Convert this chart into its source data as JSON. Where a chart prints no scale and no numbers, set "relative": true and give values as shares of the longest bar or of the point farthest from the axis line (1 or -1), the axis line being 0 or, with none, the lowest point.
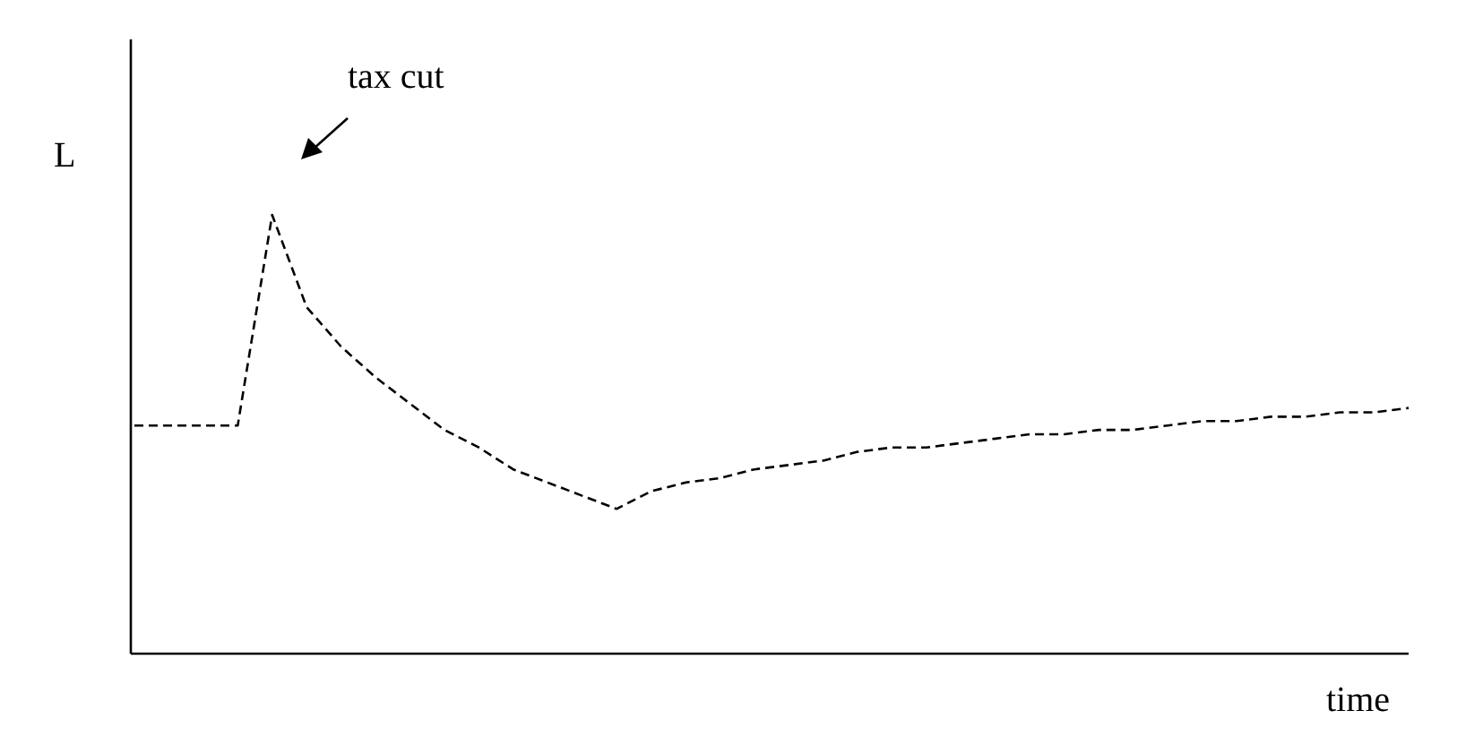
{
  "chart_data": {
    "type": "line",
    "relative": true,
    "xlabel": "time",
    "ylabel": "L",
    "annotations": [
      "tax cut"
    ],
    "marker": "none",
    "line_style": "dashed",
    "categories": [
      null,
      null,
      null,
      null,
      null,
      null,
      null,
      null,
      null,
      null,
      null,
      null,
      null,
      null,
      null,
      null,
      null,
      null,
      null,
      null,
      null,
      null,
      null,
      null,
      null,
      null,
      null,
      null,
      null,
      null,
      null,
      null,
      null,
      null,
      null,
      null,
      null,
      null
    ],
    "series": [
      {
        "color": "#000000",
        "values": [
          0.52,
          0.52,
          0.52,
          0.52,
          1.0,
          0.79,
          0.7,
          0.63,
          0.57,
          0.51,
          0.47,
          0.42,
          0.39,
          0.36,
          0.33,
          0.37,
          0.39,
          0.4,
          0.42,
          0.43,
          0.44,
          0.46,
          0.47,
          0.47,
          0.48,
          0.49,
          0.5,
          0.5,
          0.51,
          0.51,
          0.52,
          0.53,
          0.53,
          0.54,
          0.54,
          0.55,
          0.55,
          0.56
        ]
      }
    ]
  }
}
